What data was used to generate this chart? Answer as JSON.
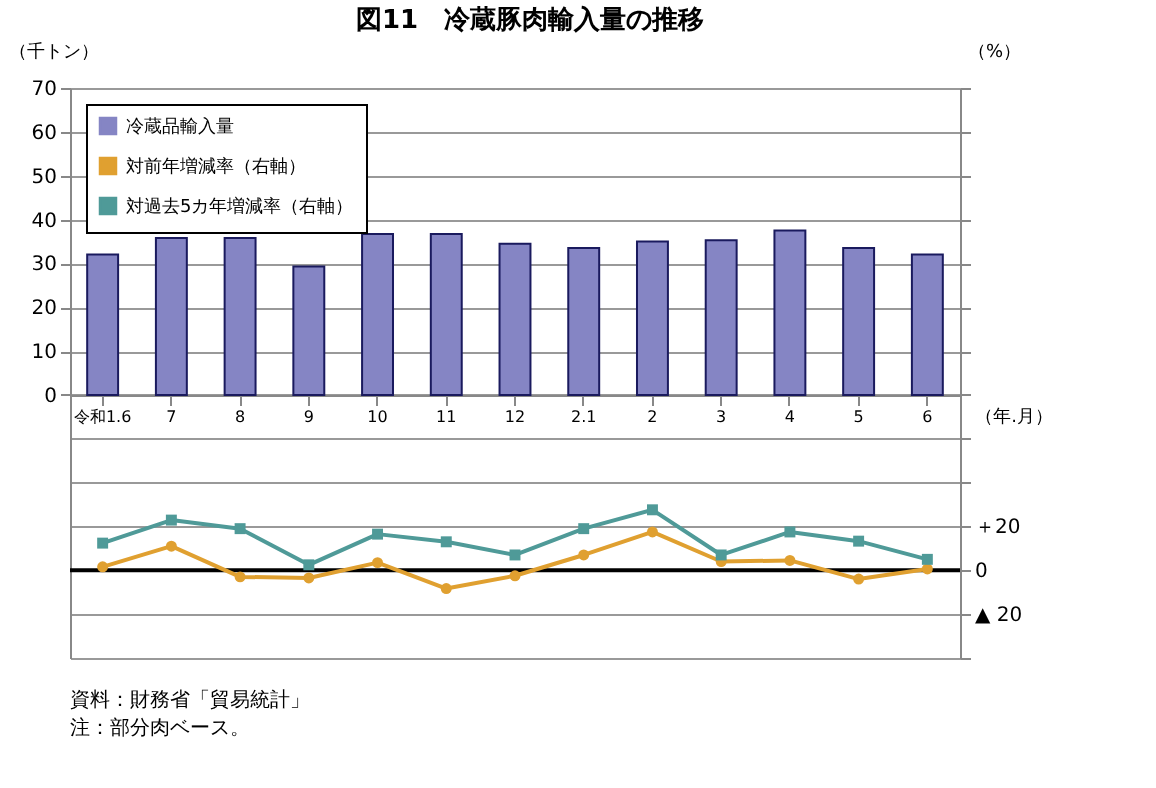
{
  "chart_data": {
    "type": "bar",
    "title": "図11　冷蔵豚肉輸入量の推移",
    "categories": [
      "令和1.6",
      "7",
      "8",
      "9",
      "10",
      "11",
      "12",
      "2.1",
      "2",
      "3",
      "4",
      "5",
      "6"
    ],
    "series": [
      {
        "name": "冷蔵品輸入量",
        "type": "bar",
        "color": "#8585c4",
        "values": [
          32,
          35.8,
          35.8,
          29.3,
          36.7,
          36.7,
          34.5,
          33.5,
          35,
          35.3,
          37.5,
          33.5,
          32
        ]
      },
      {
        "name": "対前年増減率（右軸）",
        "type": "line",
        "axis": "y2",
        "color": "#e0a030",
        "marker": "circle",
        "values": [
          1.6,
          11,
          -3,
          -3.5,
          3.5,
          -8.3,
          -2.5,
          7,
          17.5,
          4,
          4.5,
          -4,
          0.6
        ]
      },
      {
        "name": "対過去5カ年増減率（右軸）",
        "type": "line",
        "axis": "y2",
        "color": "#4f9a98",
        "marker": "square",
        "values": [
          12.4,
          22.9,
          19,
          2.5,
          16.5,
          13,
          7,
          19,
          27.6,
          7,
          17.5,
          13.3,
          5
        ]
      }
    ],
    "ylabel": "（千トン）",
    "y2label": "（%）",
    "xlabel": "（年.月）",
    "ylim": [
      -60,
      70
    ],
    "yticks": [
      0,
      10,
      20,
      30,
      40,
      50,
      60,
      70
    ],
    "y2lim": [
      -40,
      220
    ],
    "y2ticks": [
      {
        "value": 220,
        "label": null
      },
      {
        "value": 200,
        "label": null
      },
      {
        "value": 180,
        "label": null
      },
      {
        "value": 160,
        "label": null
      },
      {
        "value": 140,
        "label": null
      },
      {
        "value": 120,
        "label": null
      },
      {
        "value": 100,
        "label": null
      },
      {
        "value": 80,
        "label": null
      },
      {
        "value": 60,
        "label": null
      },
      {
        "value": 40,
        "label": null
      },
      {
        "value": 20,
        "label": "＋20"
      },
      0,
      {
        "value": -20,
        "label": "▲ 20"
      },
      {
        "value": -40,
        "label": null
      }
    ],
    "ref_lines": [
      {
        "axis": "y2",
        "value": 0,
        "color": "#000000"
      }
    ],
    "grid": "y",
    "legend": "top left",
    "annotations": [
      "資料：財務省「貿易統計」",
      "　注：部分肉ベース。"
    ]
  }
}
